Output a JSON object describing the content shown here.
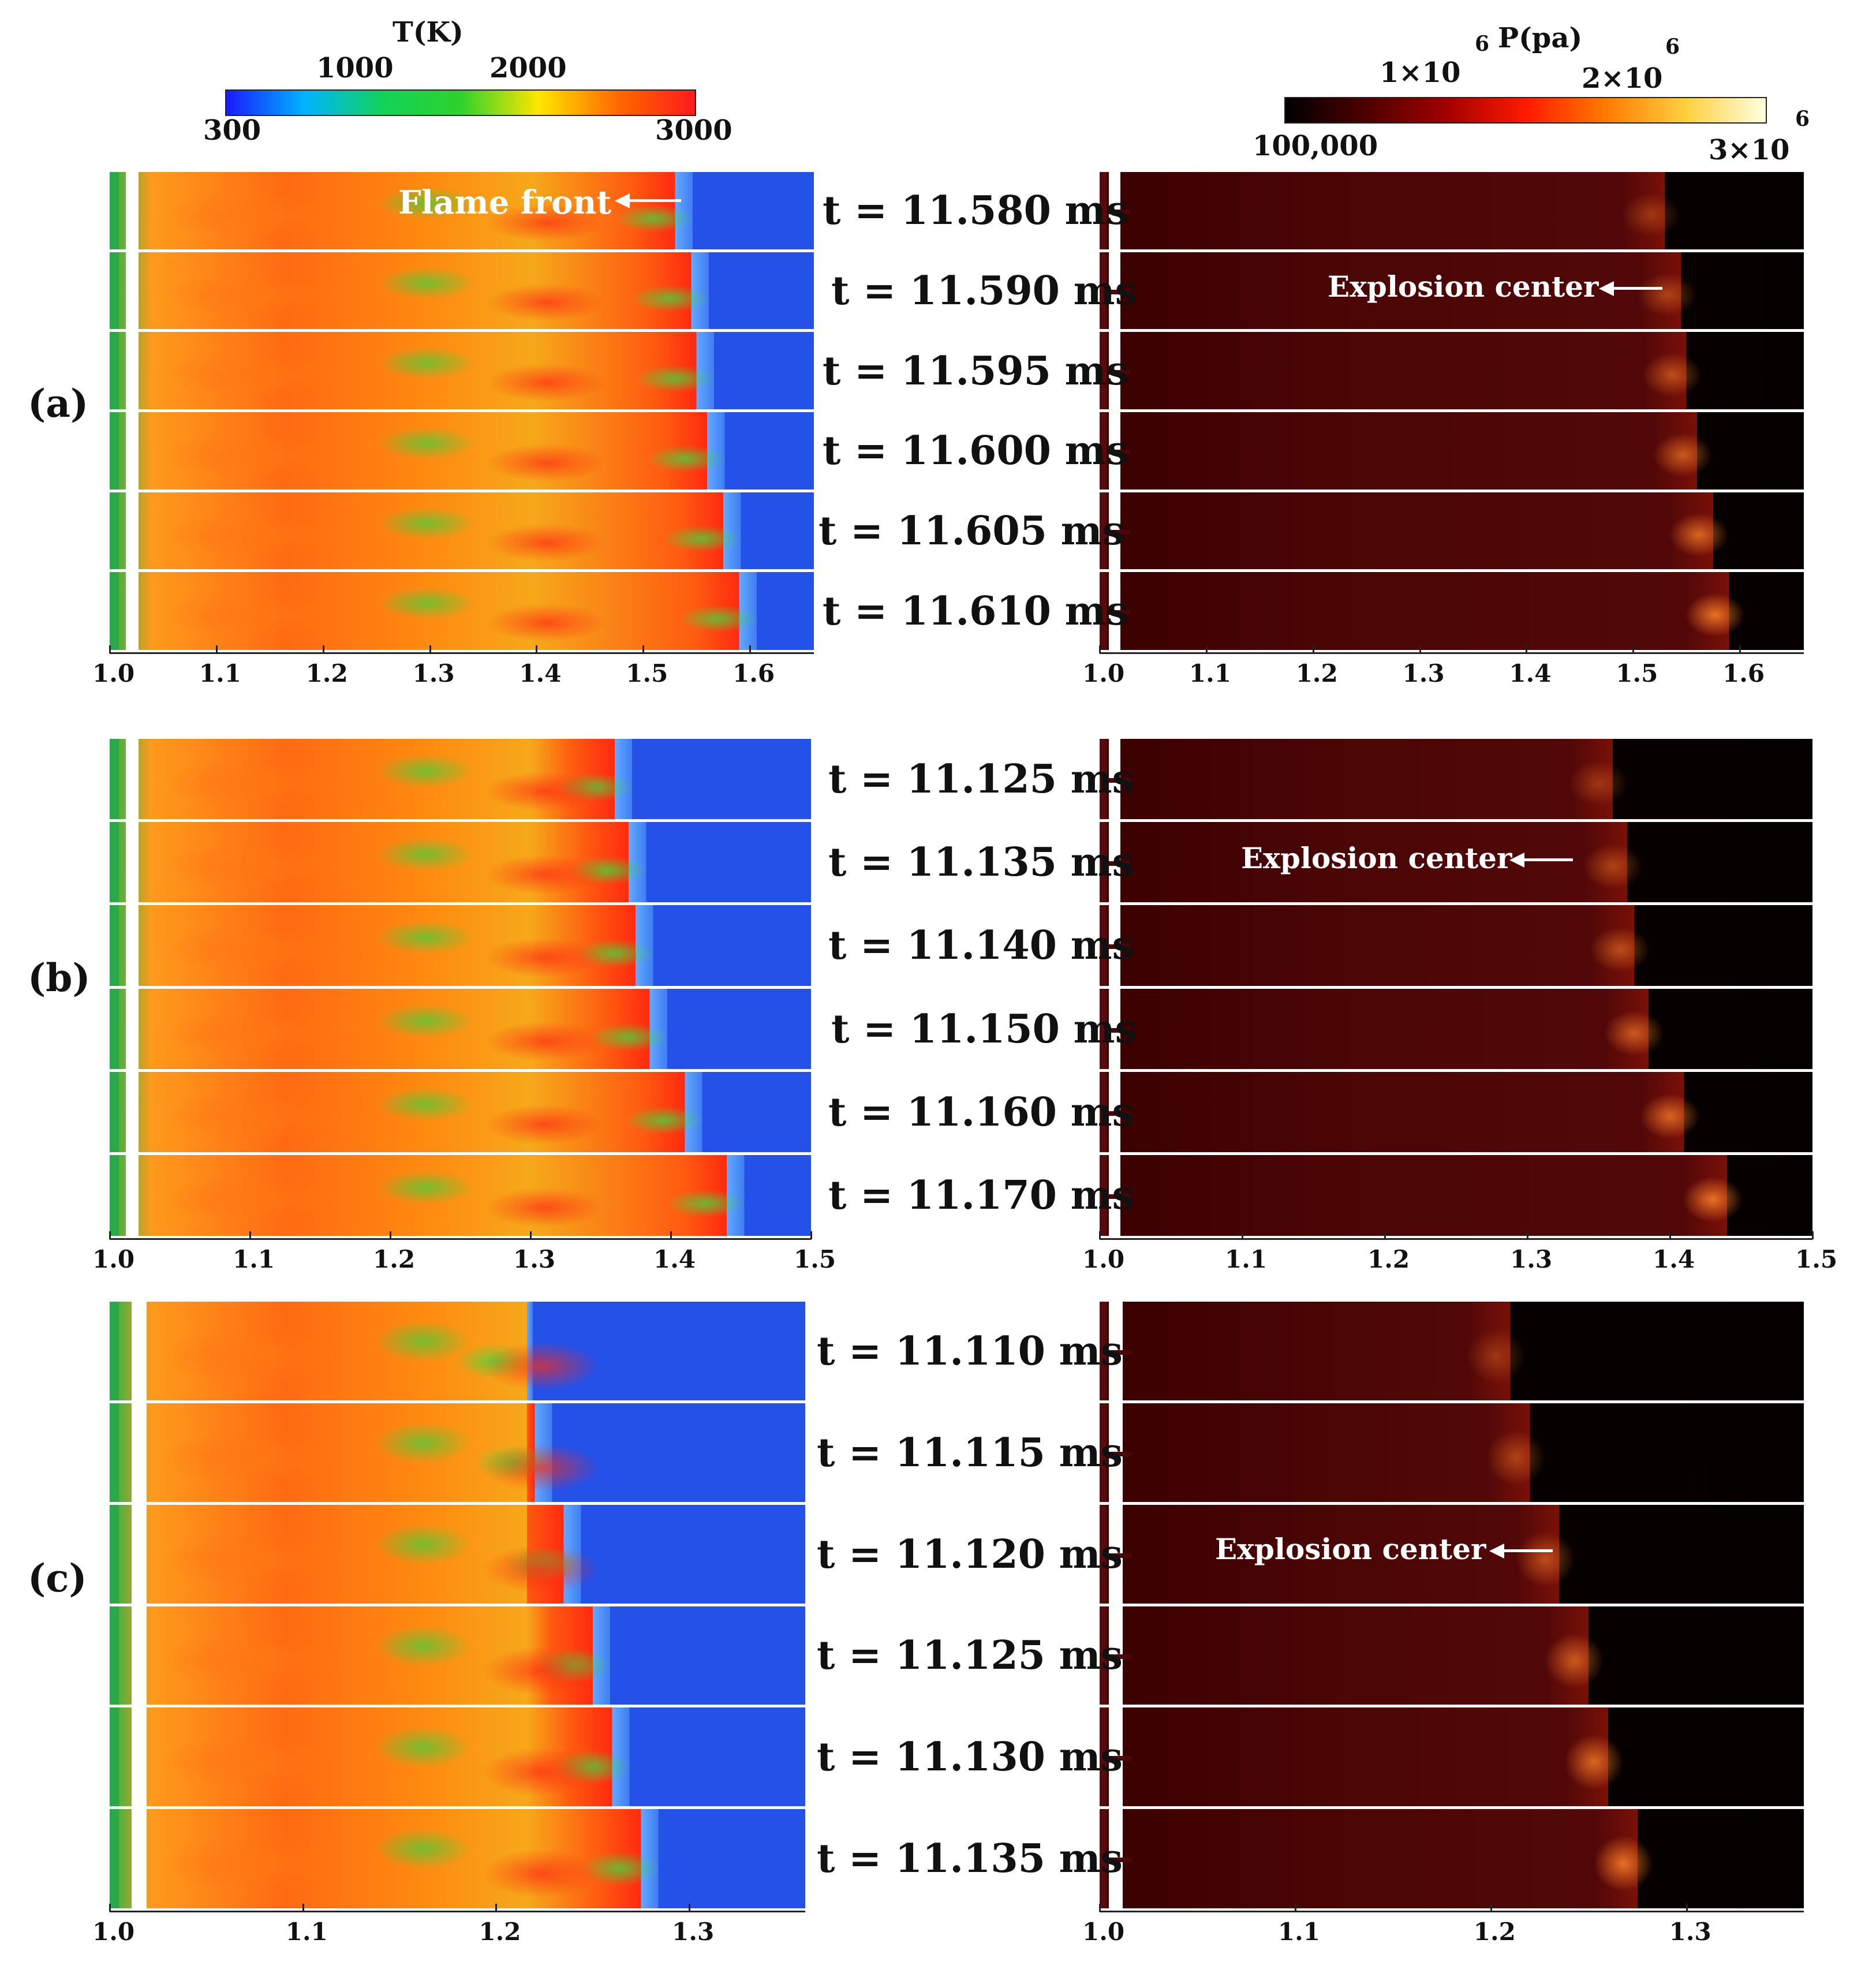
{
  "colorbars": {
    "temperature": {
      "title": "T(K)",
      "ticks_top": [
        "1000",
        "2000"
      ],
      "ticks_bottom_left": "300",
      "ticks_bottom_right": "3000",
      "gradient": [
        "#1a1aff",
        "#00b4ff",
        "#12d35a",
        "#2fd12c",
        "#ffe600",
        "#ff6a00",
        "#ff1a1a"
      ]
    },
    "pressure": {
      "title": "P(pa)",
      "tick1": "1×10",
      "tick1_sup": "6",
      "tick2": "2×10",
      "tick2_sup": "6",
      "tick_min": "100,000",
      "tick_max": "3×10",
      "tick_max_sup": "6",
      "gradient": [
        "#000000",
        "#4d0000",
        "#a10000",
        "#ff1a00",
        "#ff7a00",
        "#ffcf40",
        "#ffffe0"
      ]
    }
  },
  "panels": [
    {
      "label": "(a)",
      "times": [
        "t = 11.580 ms",
        "t = 11.590 ms",
        "t = 11.595 ms",
        "t = 11.600 ms",
        "t = 11.605 ms",
        "t = 11.610 ms"
      ],
      "x_ticks": [
        "1.0",
        "1.1",
        "1.2",
        "1.3",
        "1.4",
        "1.5",
        "1.6"
      ],
      "x_tick_values": [
        1.0,
        1.1,
        1.2,
        1.3,
        1.4,
        1.5,
        1.6
      ],
      "x_range": [
        1.0,
        1.66
      ],
      "flame_front_x": [
        1.53,
        1.545,
        1.55,
        1.56,
        1.575,
        1.59
      ],
      "annotation_left": "Flame front",
      "annotation_right": "Explosion center"
    },
    {
      "label": "(b)",
      "times": [
        "t = 11.125 ms",
        "t = 11.135 ms",
        "t = 11.140 ms",
        "t = 11.150 ms",
        "t = 11.160 ms",
        "t = 11.170 ms"
      ],
      "x_ticks": [
        "1.0",
        "1.1",
        "1.2",
        "1.3",
        "1.4",
        "1.5"
      ],
      "x_tick_values": [
        1.0,
        1.1,
        1.2,
        1.3,
        1.4,
        1.5
      ],
      "x_range": [
        1.0,
        1.5
      ],
      "flame_front_x": [
        1.36,
        1.37,
        1.375,
        1.385,
        1.41,
        1.44
      ],
      "annotation_right": "Explosion center"
    },
    {
      "label": "(c)",
      "times": [
        "t = 11.110 ms",
        "t = 11.115 ms",
        "t = 11.120 ms",
        "t = 11.125 ms",
        "t = 11.130 ms",
        "t = 11.135 ms"
      ],
      "x_ticks": [
        "1.0",
        "1.1",
        "1.2",
        "1.3"
      ],
      "x_tick_values": [
        1.0,
        1.1,
        1.2,
        1.3
      ],
      "x_range": [
        1.0,
        1.36
      ],
      "flame_front_x": [
        1.21,
        1.22,
        1.235,
        1.25,
        1.26,
        1.275
      ],
      "annotation_right": "Explosion center"
    }
  ]
}
